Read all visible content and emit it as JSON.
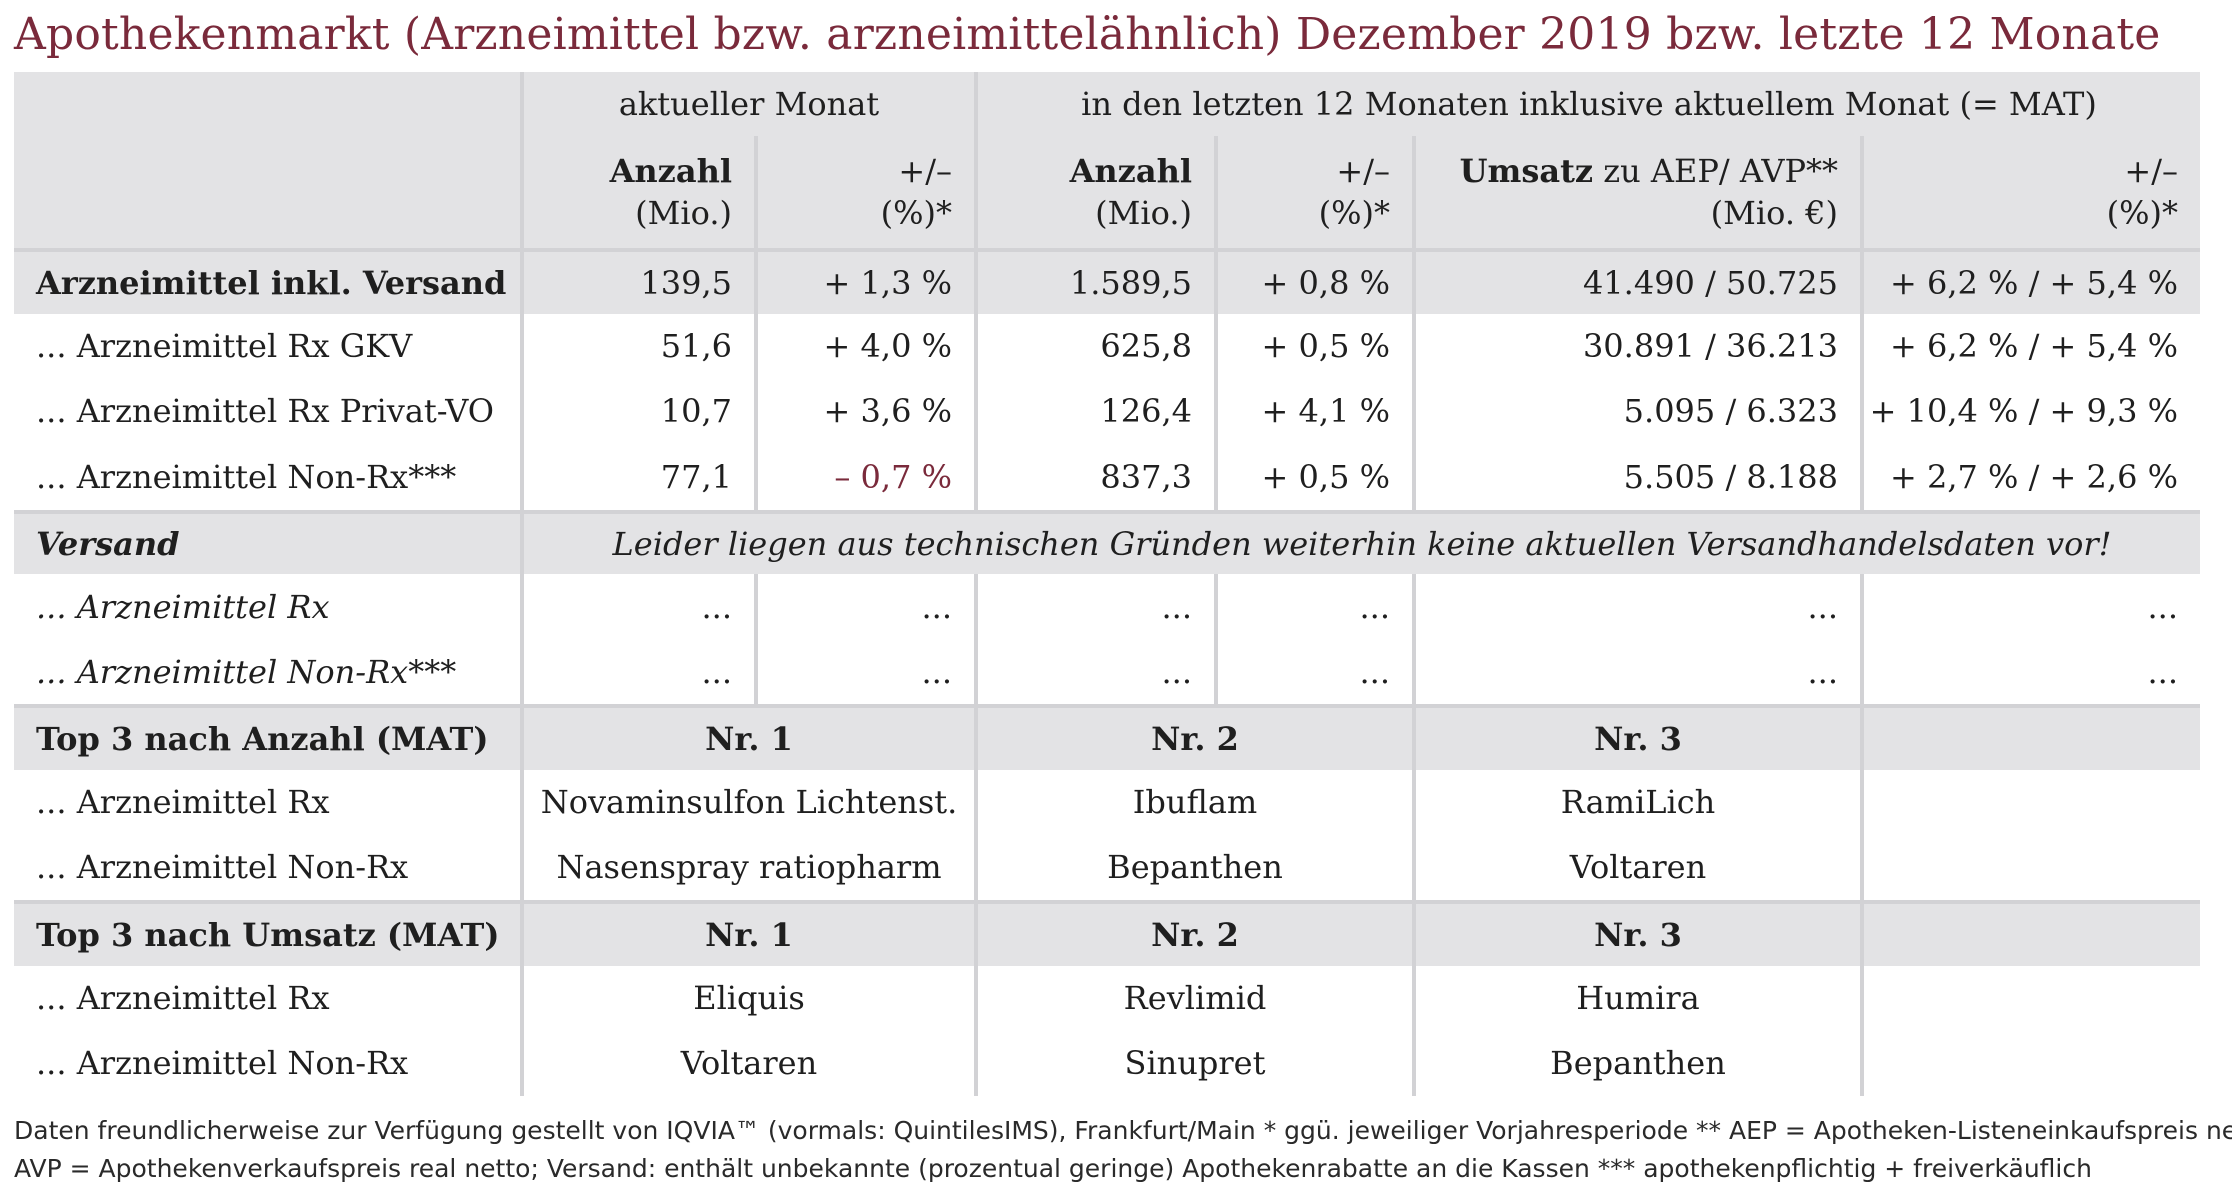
{
  "title": "Apothekenmarkt (Arzneimittel bzw. arzneimittelähnlich) Dezember 2019 bzw. letzte 12 Monate",
  "header": {
    "group_current": "aktueller Monat",
    "group_mat": "in den letzten 12 Monaten inklusive aktuellem Monat (= MAT)",
    "anzahl": "Anzahl",
    "mio": "(Mio.)",
    "plusminus": "+/–",
    "pct": "(%)*",
    "umsatz_bold": "Umsatz",
    "umsatz_rest": " zu AEP/ AVP**",
    "mio_eur": "(Mio. €)"
  },
  "rows": [
    {
      "label": "Arzneimittel inkl. Versand",
      "anz_m": "139,5",
      "chg_m": "+ 1,3 %",
      "anz_mat": "1.589,5",
      "chg_mat": "+ 0,8 %",
      "umsatz": "41.490 / 50.725",
      "chg_ums": "+ 6,2 % / + 5,4 %"
    },
    {
      "label": "... Arzneimittel Rx GKV",
      "anz_m": "51,6",
      "chg_m": "+ 4,0 %",
      "anz_mat": "625,8",
      "chg_mat": "+ 0,5 %",
      "umsatz": "30.891 / 36.213",
      "chg_ums": "+ 6,2 % / + 5,4 %"
    },
    {
      "label": "... Arzneimittel Rx Privat-VO",
      "anz_m": "10,7",
      "chg_m": "+ 3,6 %",
      "anz_mat": "126,4",
      "chg_mat": "+ 4,1 %",
      "umsatz": "5.095 / 6.323",
      "chg_ums": "+ 10,4 % / + 9,3 %"
    },
    {
      "label": "... Arzneimittel Non-Rx***",
      "anz_m": "77,1",
      "chg_m": "– 0,7 %",
      "anz_mat": "837,3",
      "chg_mat": "+ 0,5 %",
      "umsatz": "5.505 / 8.188",
      "chg_ums": "+ 2,7 % / + 2,6 %"
    }
  ],
  "versand": {
    "label": "Versand",
    "note": "Leider liegen aus technischen Gründen weiterhin keine aktuellen Versandhandelsdaten vor!",
    "rows": [
      {
        "label": "... Arzneimittel Rx",
        "v": "..."
      },
      {
        "label": "... Arzneimittel Non-Rx***",
        "v": "..."
      }
    ]
  },
  "top_anzahl": {
    "label": "Top 3 nach Anzahl (MAT)",
    "nr1": "Nr. 1",
    "nr2": "Nr. 2",
    "nr3": "Nr. 3",
    "rows": [
      {
        "label": "... Arzneimittel Rx",
        "n1": "Novaminsulfon Lichtenst.",
        "n2": "Ibuflam",
        "n3": "RamiLich"
      },
      {
        "label": "... Arzneimittel Non-Rx",
        "n1": "Nasenspray ratiopharm",
        "n2": "Bepanthen",
        "n3": "Voltaren"
      }
    ]
  },
  "top_umsatz": {
    "label": "Top 3 nach Umsatz (MAT)",
    "nr1": "Nr. 1",
    "nr2": "Nr. 2",
    "nr3": "Nr. 3",
    "rows": [
      {
        "label": "... Arzneimittel Rx",
        "n1": "Eliquis",
        "n2": "Revlimid",
        "n3": "Humira"
      },
      {
        "label": "... Arzneimittel Non-Rx",
        "n1": "Voltaren",
        "n2": "Sinupret",
        "n3": "Bepanthen"
      }
    ]
  },
  "footer": {
    "line1": "Daten freundlicherweise zur Verfügung gestellt von IQVIA™ (vormals: QuintilesIMS), Frankfurt/Main   * ggü. jeweiliger Vorjahresperiode   ** AEP = Apotheken-Listeneinkaufspreis netto,",
    "line2": "AVP = Apothekenverkaufspreis real netto; Versand: enthält unbekannte (prozentual geringe) Apothekenrabatte an die Kassen   *** apothekenpflichtig + freiverkäuflich"
  },
  "colors": {
    "title": "#7a2a3b",
    "negative": "#7a2a3b",
    "band": "#e3e3e5",
    "rule": "#d2d2d5"
  }
}
